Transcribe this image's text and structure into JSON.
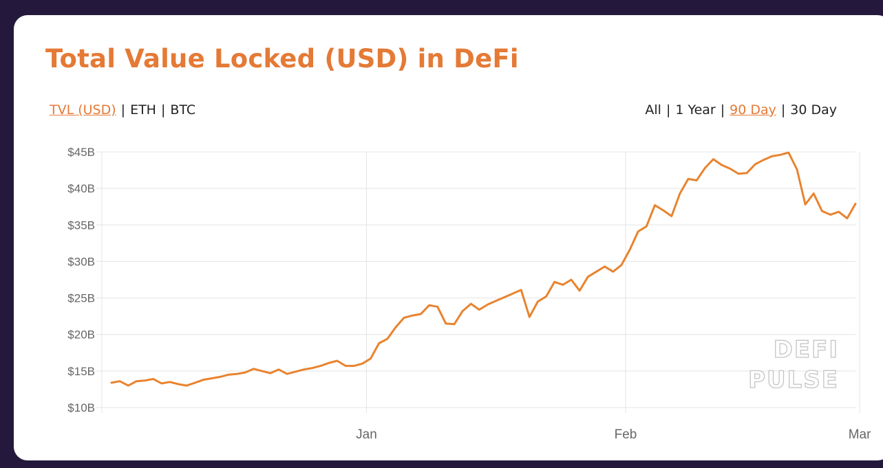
{
  "title": "Total Value Locked (USD) in DeFi",
  "metric_tabs": [
    {
      "label": "TVL (USD)",
      "active": true
    },
    {
      "label": "ETH",
      "active": false
    },
    {
      "label": "BTC",
      "active": false
    }
  ],
  "range_tabs": [
    {
      "label": "All",
      "active": false
    },
    {
      "label": "1 Year",
      "active": false
    },
    {
      "label": "90 Day",
      "active": true
    },
    {
      "label": "30 Day",
      "active": false
    }
  ],
  "separator": "|",
  "watermark": [
    "DEFI",
    "PULSE"
  ],
  "colors": {
    "accent": "#e47a36",
    "line": "#e8832e",
    "background": "#24193d",
    "card": "#ffffff",
    "grid": "#e4e4e4"
  },
  "chart_data": {
    "type": "line",
    "ylim": [
      10,
      45
    ],
    "y_ticks": [
      10,
      15,
      20,
      25,
      30,
      35,
      40,
      45
    ],
    "y_tick_labels": [
      "$10B",
      "$15B",
      "$20B",
      "$25B",
      "$30B",
      "$35B",
      "$40B",
      "$45B"
    ],
    "y_unit": "billion USD",
    "x_ticks": [
      {
        "label": "Jan",
        "x": 30.5
      },
      {
        "label": "Feb",
        "x": 61.5
      },
      {
        "label": "Mar",
        "x": 89.5
      }
    ],
    "grid": true,
    "legend": "none",
    "series": [
      {
        "x": [
          0,
          1,
          2,
          3,
          4,
          5,
          6,
          7,
          8,
          9,
          10,
          11,
          12,
          13,
          14,
          15,
          16,
          17,
          18,
          19,
          20,
          21,
          22,
          23,
          24,
          25,
          26,
          27,
          28,
          29,
          30,
          31,
          32,
          33,
          34,
          35,
          36,
          37,
          38,
          39,
          40,
          41,
          42,
          43,
          44,
          45,
          46,
          47,
          48,
          49,
          50,
          51,
          52,
          53,
          54,
          55,
          56,
          57,
          58,
          59,
          60,
          61,
          62,
          63,
          64,
          65,
          66,
          67,
          68,
          69,
          70,
          71,
          72,
          73,
          74,
          75,
          76,
          77,
          78,
          79,
          80,
          81,
          82,
          83,
          84,
          85,
          86,
          87,
          88,
          89
        ],
        "values": [
          13.4,
          13.6,
          13.0,
          13.6,
          13.7,
          13.9,
          13.3,
          13.5,
          13.2,
          13.0,
          13.4,
          13.8,
          14.0,
          14.2,
          14.5,
          14.6,
          14.8,
          15.3,
          15.0,
          14.7,
          15.2,
          14.6,
          14.9,
          15.2,
          15.4,
          15.7,
          16.1,
          16.4,
          15.7,
          15.7,
          16.0,
          16.7,
          18.8,
          19.4,
          21.0,
          22.3,
          22.6,
          22.8,
          24.0,
          23.8,
          21.5,
          21.4,
          23.2,
          24.2,
          23.4,
          24.1,
          24.6,
          25.1,
          25.6,
          26.1,
          22.4,
          24.5,
          25.2,
          27.2,
          26.8,
          27.5,
          26.0,
          27.9,
          28.6,
          29.3,
          28.6,
          29.5,
          31.6,
          34.1,
          34.8,
          37.7,
          37.0,
          36.2,
          39.3,
          41.3,
          41.1,
          42.8,
          44.0,
          43.2,
          42.7,
          42.0,
          42.1,
          43.3,
          43.9,
          44.4,
          44.6,
          44.9,
          42.6,
          37.8,
          39.3,
          36.9,
          36.4,
          36.8,
          35.9,
          37.9
        ]
      }
    ]
  }
}
